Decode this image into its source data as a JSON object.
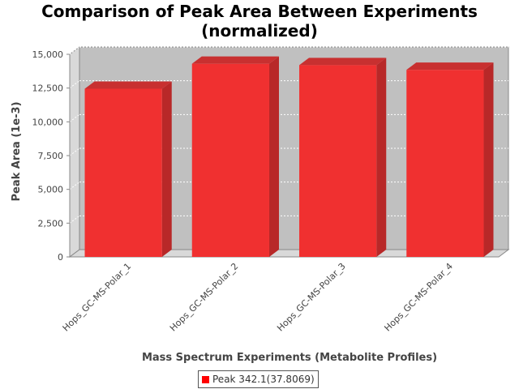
{
  "chart_data": {
    "type": "bar",
    "title_line1": "Comparison of Peak Area Between Experiments",
    "title_line2": "(normalized)",
    "xlabel": "Mass Spectrum Experiments (Metabolite Profiles)",
    "ylabel": "Peak Area (1e-3)",
    "categories": [
      "Hops_GC-MS-Polar_1",
      "Hops_GC-MS-Polar_2",
      "Hops_GC-MS-Polar_3",
      "Hops_GC-MS-Polar_4"
    ],
    "series": [
      {
        "name": "Peak 342.1(37.8069)",
        "values": [
          12450,
          14300,
          14200,
          13850
        ],
        "color": "#ff0000"
      }
    ],
    "ylim": [
      0,
      15000
    ],
    "yticks": [
      0,
      2500,
      5000,
      7500,
      10000,
      12500,
      15000
    ],
    "ytick_labels": [
      "0",
      "2,500",
      "5,000",
      "7,500",
      "10,000",
      "12,500",
      "15,000"
    ],
    "grid": true,
    "legend_position": "bottom-center",
    "style": "3d"
  }
}
